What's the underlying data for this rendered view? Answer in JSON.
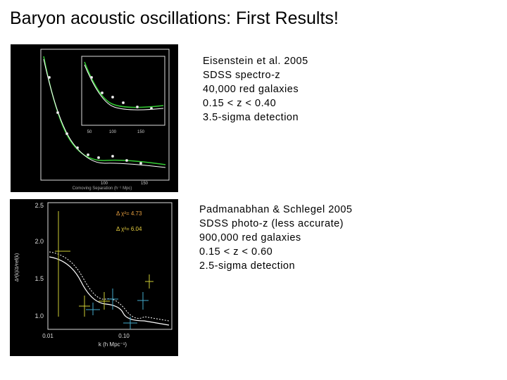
{
  "title": "Baryon acoustic oscillations:  First Results!",
  "blocks": [
    {
      "lines": [
        "Eisenstein et al. 2005",
        "SDSS spectro-z",
        "40,000 red galaxies",
        "0.15 < z < 0.40",
        "3.5-sigma detection"
      ]
    },
    {
      "lines": [
        "Padmanabhan & Schlegel 2005",
        "SDSS photo-z (less accurate)",
        "900,000 red galaxies",
        "0.15 < z < 0.60",
        "2.5-sigma detection"
      ]
    }
  ],
  "figure1": {
    "x_label": "Comoving Separation (h⁻¹ Mpc)",
    "x_ticks": [
      "100",
      "150"
    ],
    "inset_x_ticks": [
      "50",
      "100",
      "150"
    ]
  },
  "figure2": {
    "y_ticks": [
      "2.5",
      "2.0",
      "1.5",
      "1.0"
    ],
    "x_ticks": [
      "0.01",
      "0.10"
    ],
    "x_label": "k (h Mpc⁻¹)",
    "y_label": "Δ²(k)/Δ²ref(k)",
    "legend": [
      "Δ χ²= 4.73",
      "Δ χ²= 6.04"
    ]
  }
}
